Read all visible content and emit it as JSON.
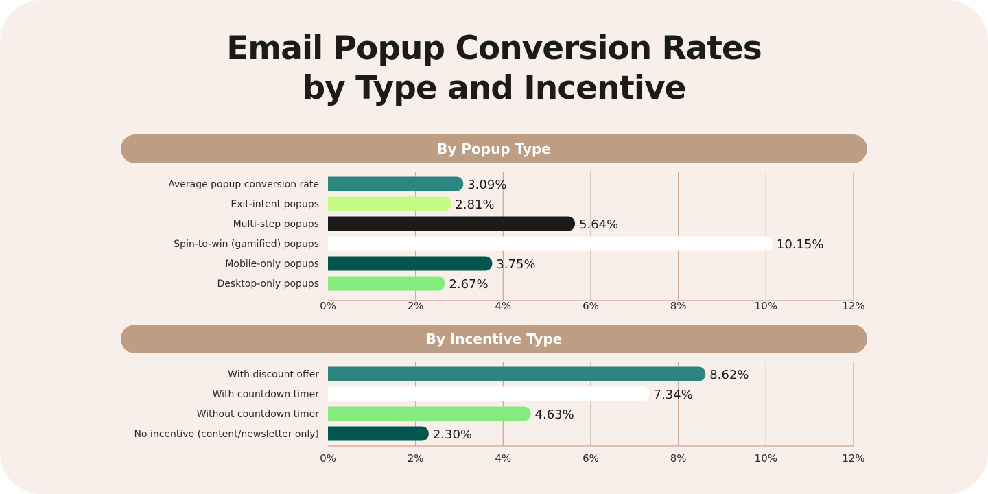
{
  "title_line1": "Email Popup Conversion Rates",
  "title_line2": "by Type and Incentive",
  "chart_data": [
    {
      "type": "bar",
      "orientation": "horizontal",
      "title": "By Popup Type",
      "categories": [
        "Average popup conversion rate",
        "Exit-intent popups",
        "Multi-step popups",
        "Spin-to-win (gamified) popups",
        "Mobile-only popups",
        "Desktop-only popups"
      ],
      "values": [
        3.09,
        2.81,
        5.64,
        10.15,
        3.75,
        2.67
      ],
      "value_labels": [
        "3.09%",
        "2.81%",
        "5.64%",
        "10.15%",
        "3.75%",
        "2.67%"
      ],
      "colors": [
        "#2e8580",
        "#c5fb84",
        "#1b1b1b",
        "#ffffff",
        "#03554e",
        "#84eb7f"
      ],
      "xlim": [
        0,
        12
      ],
      "xticks": [
        "0%",
        "2%",
        "4%",
        "6%",
        "8%",
        "10%",
        "12%"
      ],
      "grid": true
    },
    {
      "type": "bar",
      "orientation": "horizontal",
      "title": "By Incentive Type",
      "categories": [
        "With discount offer",
        "With countdown timer",
        "Without countdown timer",
        "No incentive (content/newsletter only)"
      ],
      "values": [
        8.62,
        7.34,
        4.63,
        2.3
      ],
      "value_labels": [
        "8.62%",
        "7.34%",
        "4.63%",
        "2.30%"
      ],
      "colors": [
        "#2e8580",
        "#ffffff",
        "#84eb7f",
        "#03554e"
      ],
      "xlim": [
        0,
        12
      ],
      "xticks": [
        "0%",
        "2%",
        "4%",
        "6%",
        "8%",
        "10%",
        "12%"
      ],
      "grid": true
    }
  ],
  "colors": {
    "background": "#f8efea",
    "header_pill": "#bd9d84",
    "grid": "#c9a891",
    "text": "#1b1b1b"
  }
}
